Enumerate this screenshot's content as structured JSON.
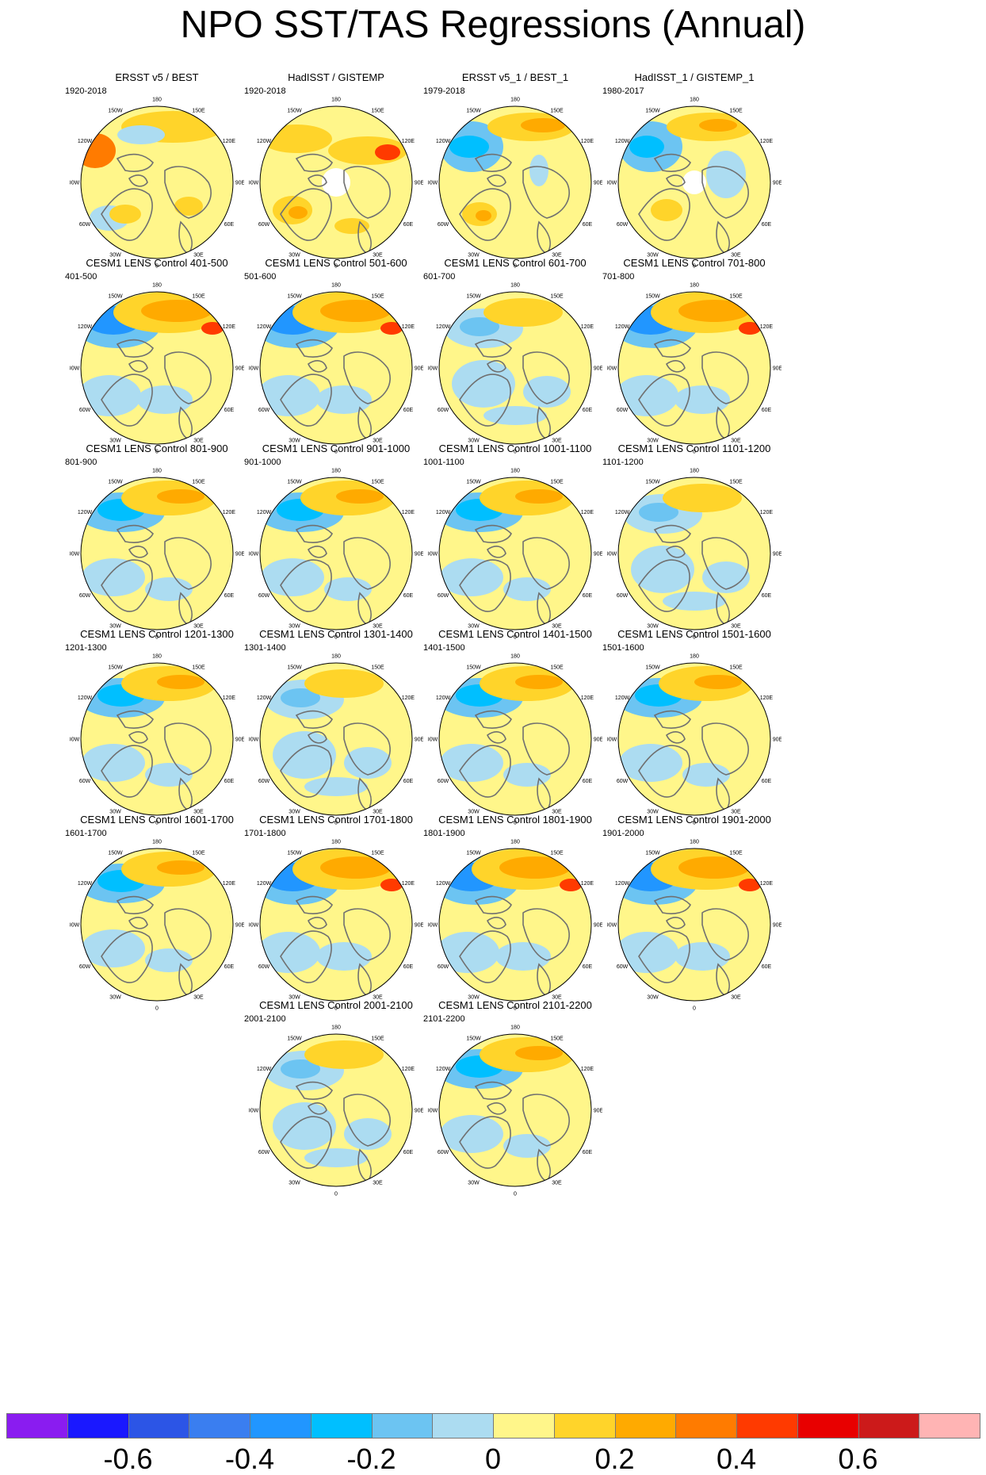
{
  "title": "NPO SST/TAS Regressions (Annual)",
  "longitude_labels": [
    "180",
    "150E",
    "120E",
    "90E",
    "60E",
    "30E",
    "0",
    "30W",
    "60W",
    "90W",
    "120W",
    "150W"
  ],
  "panels": [
    {
      "title": "ERSST v5 / BEST",
      "period": "1920-2018",
      "pattern": "obs1"
    },
    {
      "title": "HadISST / GISTEMP",
      "period": "1920-2018",
      "pattern": "obs2"
    },
    {
      "title": "ERSST v5_1 / BEST_1",
      "period": "1979-2018",
      "pattern": "obs3"
    },
    {
      "title": "HadISST_1 / GISTEMP_1",
      "period": "1980-2017",
      "pattern": "obs4"
    },
    {
      "title": "CESM1 LENS Control 401-500",
      "period": "401-500",
      "pattern": "strong"
    },
    {
      "title": "CESM1 LENS Control 501-600",
      "period": "501-600",
      "pattern": "strong"
    },
    {
      "title": "CESM1 LENS Control 601-700",
      "period": "601-700",
      "pattern": "weak"
    },
    {
      "title": "CESM1 LENS Control 701-800",
      "period": "701-800",
      "pattern": "strong"
    },
    {
      "title": "CESM1 LENS Control 801-900",
      "period": "801-900",
      "pattern": "medium"
    },
    {
      "title": "CESM1 LENS Control 901-1000",
      "period": "901-1000",
      "pattern": "medium"
    },
    {
      "title": "CESM1 LENS Control 1001-1100",
      "period": "1001-1100",
      "pattern": "medium"
    },
    {
      "title": "CESM1 LENS Control 1101-1200",
      "period": "1101-1200",
      "pattern": "weak"
    },
    {
      "title": "CESM1 LENS Control 1201-1300",
      "period": "1201-1300",
      "pattern": "medium"
    },
    {
      "title": "CESM1 LENS Control 1301-1400",
      "period": "1301-1400",
      "pattern": "weak"
    },
    {
      "title": "CESM1 LENS Control 1401-1500",
      "period": "1401-1500",
      "pattern": "medium"
    },
    {
      "title": "CESM1 LENS Control 1501-1600",
      "period": "1501-1600",
      "pattern": "medium"
    },
    {
      "title": "CESM1 LENS Control 1601-1700",
      "period": "1601-1700",
      "pattern": "medium"
    },
    {
      "title": "CESM1 LENS Control 1701-1800",
      "period": "1701-1800",
      "pattern": "strong"
    },
    {
      "title": "CESM1 LENS Control 1801-1900",
      "period": "1801-1900",
      "pattern": "strong"
    },
    {
      "title": "CESM1 LENS Control 1901-2000",
      "period": "1901-2000",
      "pattern": "strong"
    },
    {
      "title": "CESM1 LENS Control 2001-2100",
      "period": "2001-2100",
      "pattern": "weak"
    },
    {
      "title": "CESM1 LENS Control 2101-2200",
      "period": "2101-2200",
      "pattern": "medium"
    }
  ],
  "colorbar": {
    "colors": [
      "#8a1cf0",
      "#1a18ff",
      "#2c55e6",
      "#3a7ef0",
      "#2196ff",
      "#00bfff",
      "#6cc4f2",
      "#acdcf1",
      "#fff68a",
      "#ffd42a",
      "#ffaa00",
      "#ff7b00",
      "#ff3a00",
      "#e80000",
      "#cc1a1a",
      "#ffb4b4"
    ],
    "labels": [
      "-0.6",
      "-0.4",
      "-0.2",
      "0",
      "0.2",
      "0.4",
      "0.6"
    ]
  }
}
